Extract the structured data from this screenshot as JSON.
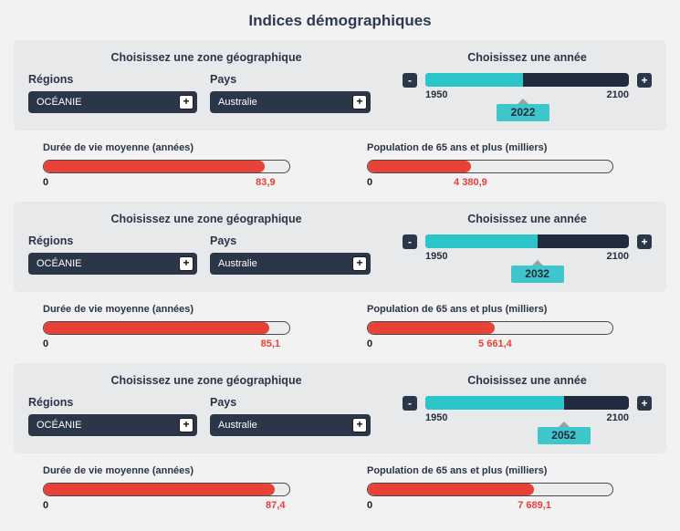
{
  "page": {
    "title": "Indices démographiques"
  },
  "controls": {
    "minus_label": "-",
    "plus_label": "+",
    "expand_label": "+"
  },
  "colors": {
    "teal": "#2cc5c9",
    "navy": "#2b3648",
    "red": "#e84238",
    "panel_bg": "#e8e9eb"
  },
  "sections": [
    {
      "zone_title": "Choisissez une zone géographique",
      "year_title": "Choisissez une année",
      "regions_label": "Régions",
      "pays_label": "Pays",
      "region_value": "OCÉANIE",
      "pays_value": "Australie",
      "year_min": "1950",
      "year_max": "2100",
      "year_value": "2022",
      "year_pct": 48,
      "bars": [
        {
          "label": "Durée de vie moyenne (années)",
          "min": "0",
          "value": "83,9",
          "pct": 90
        },
        {
          "label": "Population de 65 ans et plus (milliers)",
          "min": "0",
          "value": "4 380,9",
          "pct": 42
        }
      ]
    },
    {
      "zone_title": "Choisissez une zone géographique",
      "year_title": "Choisissez une année",
      "regions_label": "Régions",
      "pays_label": "Pays",
      "region_value": "OCÉANIE",
      "pays_value": "Australie",
      "year_min": "1950",
      "year_max": "2100",
      "year_value": "2032",
      "year_pct": 55,
      "bars": [
        {
          "label": "Durée de vie moyenne (années)",
          "min": "0",
          "value": "85,1",
          "pct": 92
        },
        {
          "label": "Population de 65 ans et plus (milliers)",
          "min": "0",
          "value": "5 661,4",
          "pct": 52
        }
      ]
    },
    {
      "zone_title": "Choisissez une zone géographique",
      "year_title": "Choisissez une année",
      "regions_label": "Régions",
      "pays_label": "Pays",
      "region_value": "OCÉANIE",
      "pays_value": "Australie",
      "year_min": "1950",
      "year_max": "2100",
      "year_value": "2052",
      "year_pct": 68,
      "bars": [
        {
          "label": "Durée de vie moyenne (années)",
          "min": "0",
          "value": "87,4",
          "pct": 94
        },
        {
          "label": "Population de 65 ans et plus (milliers)",
          "min": "0",
          "value": "7 689,1",
          "pct": 68
        }
      ]
    }
  ]
}
